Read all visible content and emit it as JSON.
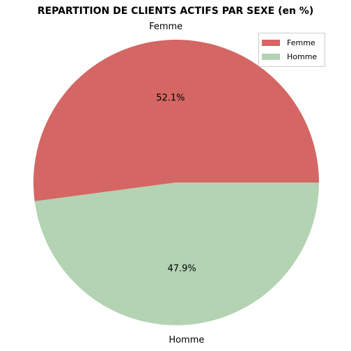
{
  "chart_data": {
    "type": "pie",
    "title": "REPARTITION DE CLIENTS ACTIFS PAR SEXE (en %)",
    "categories": [
      "Femme",
      "Homme"
    ],
    "values": [
      52.1,
      47.9
    ],
    "percent_labels": [
      "52.1%",
      "47.9%"
    ],
    "colors": [
      "#d46664",
      "#b3d3b3"
    ],
    "legend": {
      "position": "top-right",
      "entries": [
        "Femme",
        "Homme"
      ]
    },
    "start_angle": "counter-clockwise from 0°",
    "grid": false
  }
}
